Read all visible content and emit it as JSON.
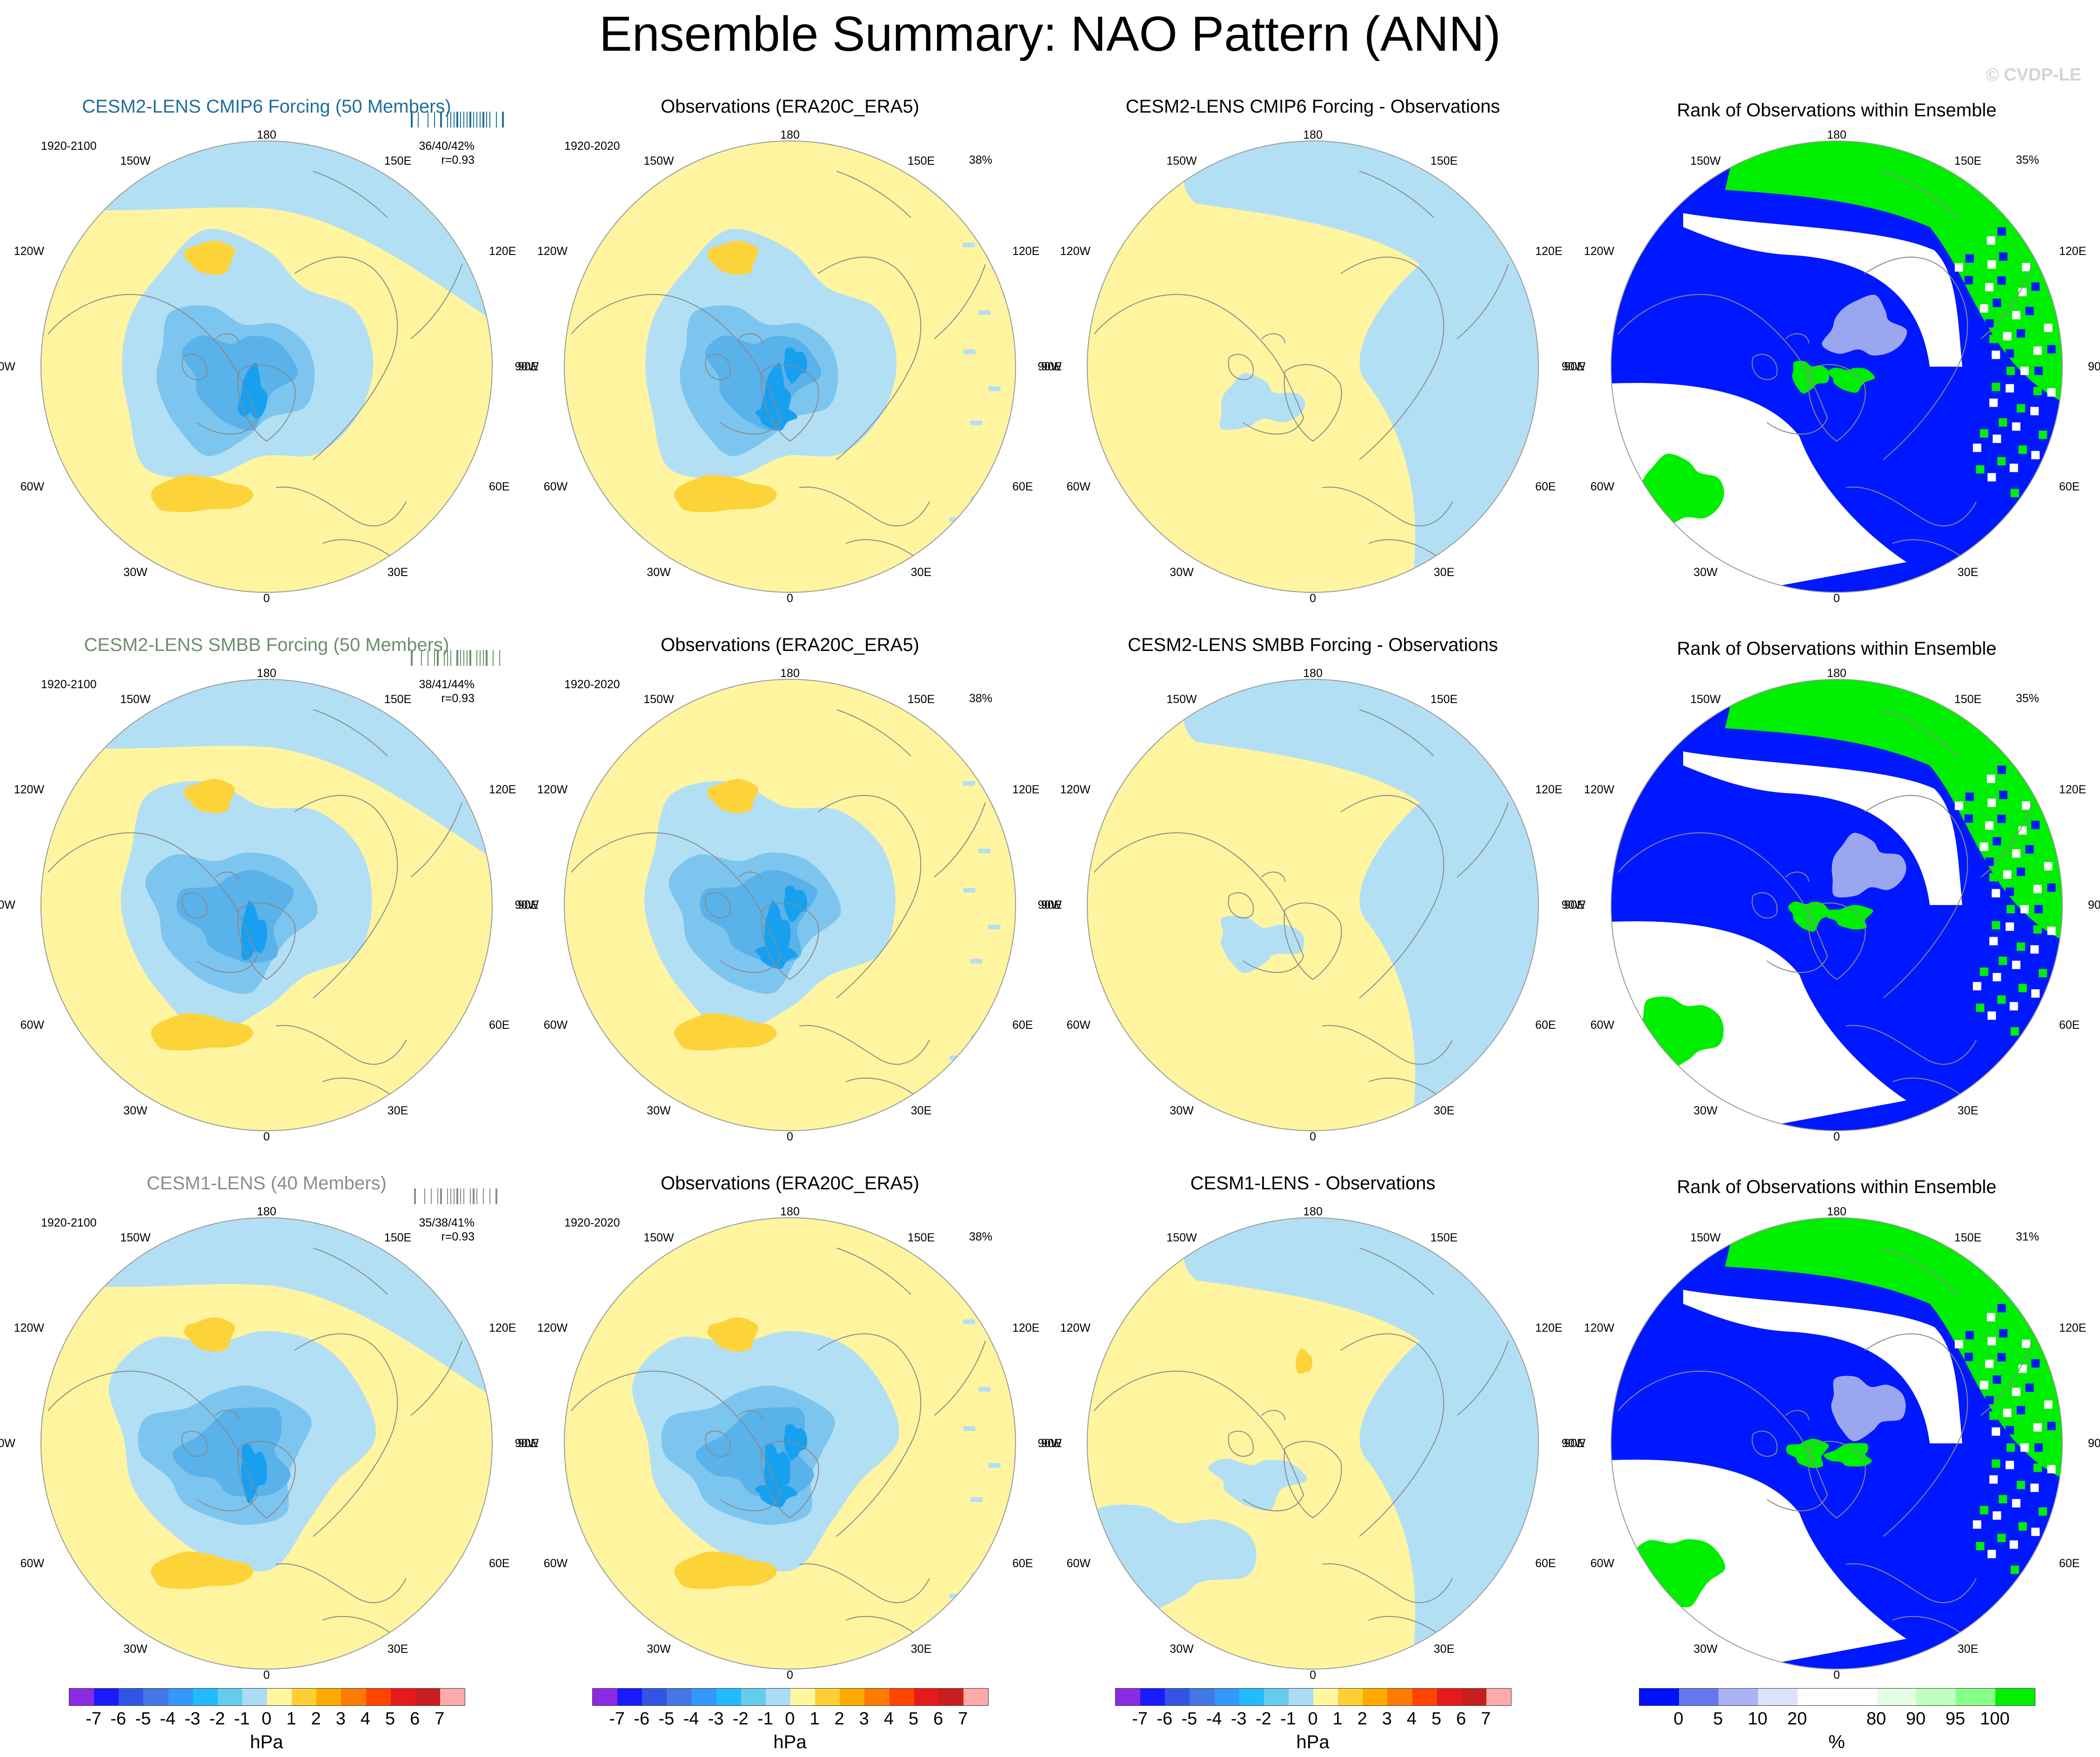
{
  "title": "Ensemble Summary: NAO Pattern (ANN)",
  "watermark": "© CVDP-LE",
  "rows": [
    {
      "model": {
        "title": "CESM2-LENS CMIP6 Forcing (50 Members)",
        "title_color": "#1f6e99",
        "period": "1920-2100",
        "stats": "36/40/42%",
        "corr": "r=0.93",
        "stat_color": "#1f6e99",
        "rugs": [
          -14,
          -12,
          -9,
          -7,
          -5,
          -3,
          -2,
          -1,
          0,
          1,
          2,
          3,
          4,
          5,
          6,
          7,
          8,
          9,
          10,
          12,
          14
        ]
      },
      "obs": {
        "title": "Observations (ERA20C_ERA5)",
        "period": "1920-2020",
        "pct": "38%"
      },
      "diff": {
        "title": "CESM2-LENS CMIP6 Forcing - Observations"
      },
      "rank": {
        "title": "Rank of Observations within Ensemble",
        "pct": "35%"
      }
    },
    {
      "model": {
        "title": "CESM2-LENS SMBB Forcing (50 Members)",
        "title_color": "#6b8f6b",
        "period": "1920-2100",
        "stats": "38/41/44%",
        "corr": "r=0.93",
        "stat_color": "#6b8f6b",
        "rugs": [
          -14,
          -11,
          -9,
          -7,
          -6,
          -4,
          -3,
          -2,
          0,
          1,
          2,
          3,
          4,
          6,
          7,
          8,
          9,
          11,
          13
        ]
      },
      "obs": {
        "title": "Observations (ERA20C_ERA5)",
        "period": "1920-2020",
        "pct": "38%"
      },
      "diff": {
        "title": "CESM2-LENS SMBB Forcing - Observations"
      },
      "rank": {
        "title": "Rank of Observations within Ensemble",
        "pct": "35%"
      }
    },
    {
      "model": {
        "title": "CESM1-LENS (40 Members)",
        "title_color": "#8c8c8c",
        "period": "1920-2100",
        "stats": "35/38/41%",
        "corr": "r=0.93",
        "stat_color": "#8c8c8c",
        "rugs": [
          -13,
          -10,
          -8,
          -6,
          -5,
          -3,
          -2,
          -1,
          0,
          1,
          2,
          4,
          5,
          6,
          8,
          10,
          12
        ]
      },
      "obs": {
        "title": "Observations (ERA20C_ERA5)",
        "period": "1920-2020",
        "pct": "38%"
      },
      "diff": {
        "title": "CESM1-LENS - Observations"
      },
      "rank": {
        "title": "Rank of Observations within Ensemble",
        "pct": "31%"
      }
    }
  ],
  "lon_labels": [
    "180",
    "150W",
    "150E",
    "120W",
    "120E",
    "90W",
    "90E",
    "60W",
    "60E",
    "30W",
    "30E",
    "0"
  ],
  "colorbars": {
    "hpa": {
      "colors": [
        "#8a2be2",
        "#1a1aff",
        "#3355e6",
        "#4477e6",
        "#3399ff",
        "#22bbff",
        "#66ccee",
        "#aadcf5",
        "#fff7a0",
        "#ffd033",
        "#ffaa00",
        "#ff7a00",
        "#ff4400",
        "#e61a1a",
        "#c81e1e",
        "#ffaaaa"
      ],
      "ticks": [
        "-7",
        "-6",
        "-5",
        "-4",
        "-3",
        "-2",
        "-1",
        "0",
        "1",
        "2",
        "3",
        "4",
        "5",
        "6",
        "7"
      ],
      "unit": "hPa"
    },
    "rank": {
      "colors": [
        "#0010ff",
        "#6677ee",
        "#aab4f5",
        "#dde2fa",
        "#ffffff",
        "#ffffff",
        "#e4ffe4",
        "#c0ffc0",
        "#88ff88",
        "#00ee00"
      ],
      "ticks": [
        "0",
        "5",
        "10",
        "20",
        "80",
        "90",
        "95",
        "100"
      ],
      "unit": "%"
    }
  },
  "palette": {
    "neg1": "#b3dff5",
    "neg2": "#7cc5ee",
    "neg3": "#59b2ea",
    "neg4": "#18a0f0",
    "pos1": "#fff5a0",
    "pos2": "#fdd33a",
    "rank_low": "#0018ff",
    "rank_mid": "#9aa6f0",
    "rank_high": "#00ee00",
    "rank_pale": "#e8ffe8"
  }
}
